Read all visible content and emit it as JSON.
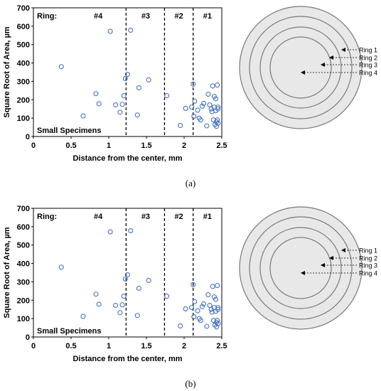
{
  "chart_data": [
    {
      "type": "scatter",
      "caption": "(a)",
      "xlabel": "Distance from the center, mm",
      "ylabel": "Square Root of Area, µm",
      "xlim": [
        0,
        2.5
      ],
      "ylim": [
        0,
        700
      ],
      "xticks": [
        "0",
        "0.5",
        "1",
        "1.5",
        "2",
        "2.5"
      ],
      "yticks": [
        "0",
        "100",
        "200",
        "300",
        "400",
        "500",
        "600",
        "700"
      ],
      "grid": false,
      "ring_label": "Ring:",
      "specimen_label": "Small Specimens",
      "zones": [
        {
          "label": "#4",
          "x_center": 0.86
        },
        {
          "label": "#3",
          "x_center": 1.49
        },
        {
          "label": "#2",
          "x_center": 1.93
        },
        {
          "label": "#1",
          "x_center": 2.31
        }
      ],
      "boundaries": [
        1.23,
        1.74,
        2.12
      ],
      "series": [
        {
          "x": [
            0.37,
            0.66,
            0.83,
            0.87,
            1.02,
            1.09,
            1.15,
            1.18,
            1.2,
            1.22,
            1.25,
            1.29,
            1.38,
            1.4,
            1.53,
            1.77,
            1.95,
            2.02,
            2.1,
            2.12,
            2.13,
            2.14,
            2.18,
            2.2,
            2.22,
            2.24,
            2.26,
            2.3,
            2.32,
            2.34,
            2.36,
            2.37,
            2.38,
            2.39,
            2.4,
            2.4,
            2.41,
            2.42,
            2.42,
            2.43,
            2.43,
            2.44,
            2.44,
            2.45,
            2.45,
            2.45
          ],
          "y": [
            380,
            112,
            233,
            178,
            572,
            172,
            132,
            175,
            222,
            315,
            338,
            578,
            117,
            265,
            308,
            222,
            60,
            153,
            160,
            285,
            110,
            192,
            143,
            100,
            90,
            165,
            180,
            58,
            230,
            172,
            150,
            135,
            275,
            90,
            218,
            160,
            65,
            205,
            140,
            80,
            55,
            280,
            90,
            160,
            72,
            150
          ]
        }
      ]
    },
    {
      "type": "scatter",
      "caption": "(b)",
      "xlabel": "Distance from the center, mm",
      "ylabel": "Square Root of Area, µm",
      "xlim": [
        0,
        2.5
      ],
      "ylim": [
        0,
        700
      ],
      "xticks": [
        "0",
        "0.5",
        "1",
        "1.5",
        "2",
        "2.5"
      ],
      "yticks": [
        "0",
        "100",
        "200",
        "300",
        "400",
        "500",
        "600",
        "700"
      ],
      "grid": false,
      "ring_label": "Ring:",
      "specimen_label": "Small Specimens",
      "zones": [
        {
          "label": "#4",
          "x_center": 0.86
        },
        {
          "label": "#3",
          "x_center": 1.49
        },
        {
          "label": "#2",
          "x_center": 1.93
        },
        {
          "label": "#1",
          "x_center": 2.31
        }
      ],
      "boundaries": [
        1.23,
        1.74,
        2.12
      ],
      "series": [
        {
          "x": [
            0.37,
            0.66,
            0.83,
            0.87,
            1.02,
            1.09,
            1.15,
            1.18,
            1.2,
            1.22,
            1.25,
            1.29,
            1.38,
            1.4,
            1.53,
            1.77,
            1.95,
            2.02,
            2.1,
            2.12,
            2.13,
            2.14,
            2.18,
            2.2,
            2.22,
            2.24,
            2.26,
            2.3,
            2.32,
            2.34,
            2.36,
            2.37,
            2.38,
            2.39,
            2.4,
            2.4,
            2.41,
            2.42,
            2.42,
            2.43,
            2.43,
            2.44,
            2.44,
            2.45,
            2.45,
            2.45
          ],
          "y": [
            380,
            112,
            233,
            178,
            572,
            172,
            132,
            175,
            222,
            315,
            338,
            578,
            117,
            265,
            308,
            222,
            60,
            153,
            160,
            285,
            110,
            192,
            143,
            100,
            90,
            165,
            180,
            58,
            230,
            172,
            150,
            135,
            275,
            90,
            218,
            160,
            65,
            205,
            140,
            80,
            55,
            280,
            90,
            160,
            72,
            150
          ]
        }
      ]
    }
  ],
  "diagram": {
    "rings": [
      "Ring 1",
      "Ring 2",
      "Ring 3",
      "Ring 4"
    ]
  }
}
